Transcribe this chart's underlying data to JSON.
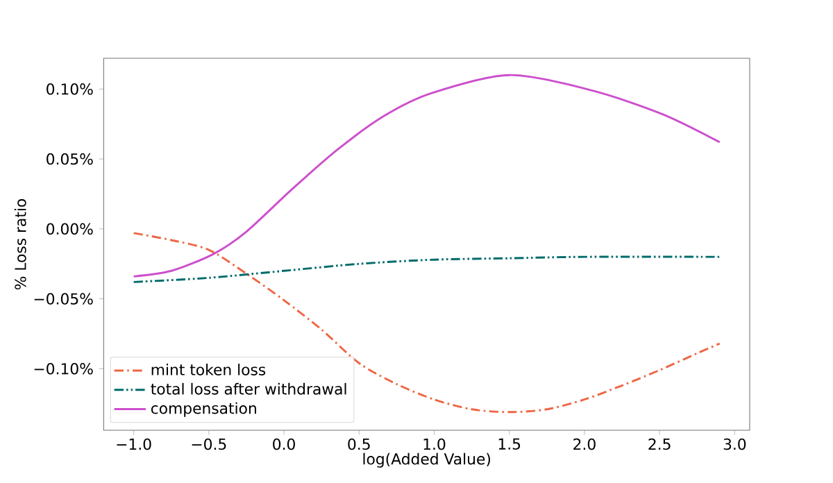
{
  "chart_data": {
    "type": "line",
    "xlabel": "log(Added Value)",
    "ylabel": "% Loss ratio",
    "xlim": [
      -1.2,
      3.1
    ],
    "xticks": [
      {
        "value": -1,
        "label": "−1.0"
      },
      {
        "value": -0.5,
        "label": "−0.5"
      },
      {
        "value": 0,
        "label": "0.0"
      },
      {
        "value": 0.5,
        "label": "0.5"
      },
      {
        "value": 1,
        "label": "1.0"
      },
      {
        "value": 1.5,
        "label": "1.5"
      },
      {
        "value": 2,
        "label": "2.0"
      },
      {
        "value": 2.5,
        "label": "2.5"
      },
      {
        "value": 3,
        "label": "3.0"
      }
    ],
    "ylim": [
      -0.144,
      0.122
    ],
    "yticks": [
      {
        "value": -0.1,
        "label": "−0.10%"
      },
      {
        "value": -0.05,
        "label": "−0.05%"
      },
      {
        "value": 0,
        "label": "0.00%"
      },
      {
        "value": 0.05,
        "label": "0.05%"
      },
      {
        "value": 0.1,
        "label": "0.10%"
      }
    ],
    "legend": "bottom left",
    "grid": false,
    "series": [
      {
        "name": "mint token loss",
        "color": "#ee6644",
        "line_style": "dashdot",
        "x": [
          -1,
          -0.75,
          -0.5,
          -0.25,
          0,
          0.25,
          0.5,
          0.75,
          1,
          1.25,
          1.5,
          1.75,
          2,
          2.25,
          2.5,
          2.75,
          2.9
        ],
        "values": [
          -0.003,
          -0.008,
          -0.015,
          -0.032,
          -0.051,
          -0.072,
          -0.096,
          -0.111,
          -0.122,
          -0.129,
          -0.131,
          -0.129,
          -0.122,
          -0.112,
          -0.101,
          -0.089,
          -0.082
        ]
      },
      {
        "name": "total loss after withdrawal",
        "color": "#006b6b",
        "line_style": "dashdotdot",
        "x": [
          -1,
          -0.5,
          0,
          0.5,
          1,
          1.5,
          2,
          2.9
        ],
        "values": [
          -0.038,
          -0.035,
          -0.03,
          -0.025,
          -0.022,
          -0.021,
          -0.02,
          -0.02
        ]
      },
      {
        "name": "compensation",
        "color": "#cc4fcc",
        "line_style": "solid",
        "x": [
          -1,
          -0.75,
          -0.47,
          -0.25,
          0.05,
          0.36,
          0.67,
          0.98,
          1.5,
          2.05,
          2.52,
          2.9
        ],
        "values": [
          -0.034,
          -0.03,
          -0.018,
          -0.002,
          0.028,
          0.057,
          0.081,
          0.097,
          0.11,
          0.099,
          0.082,
          0.062
        ]
      }
    ]
  }
}
